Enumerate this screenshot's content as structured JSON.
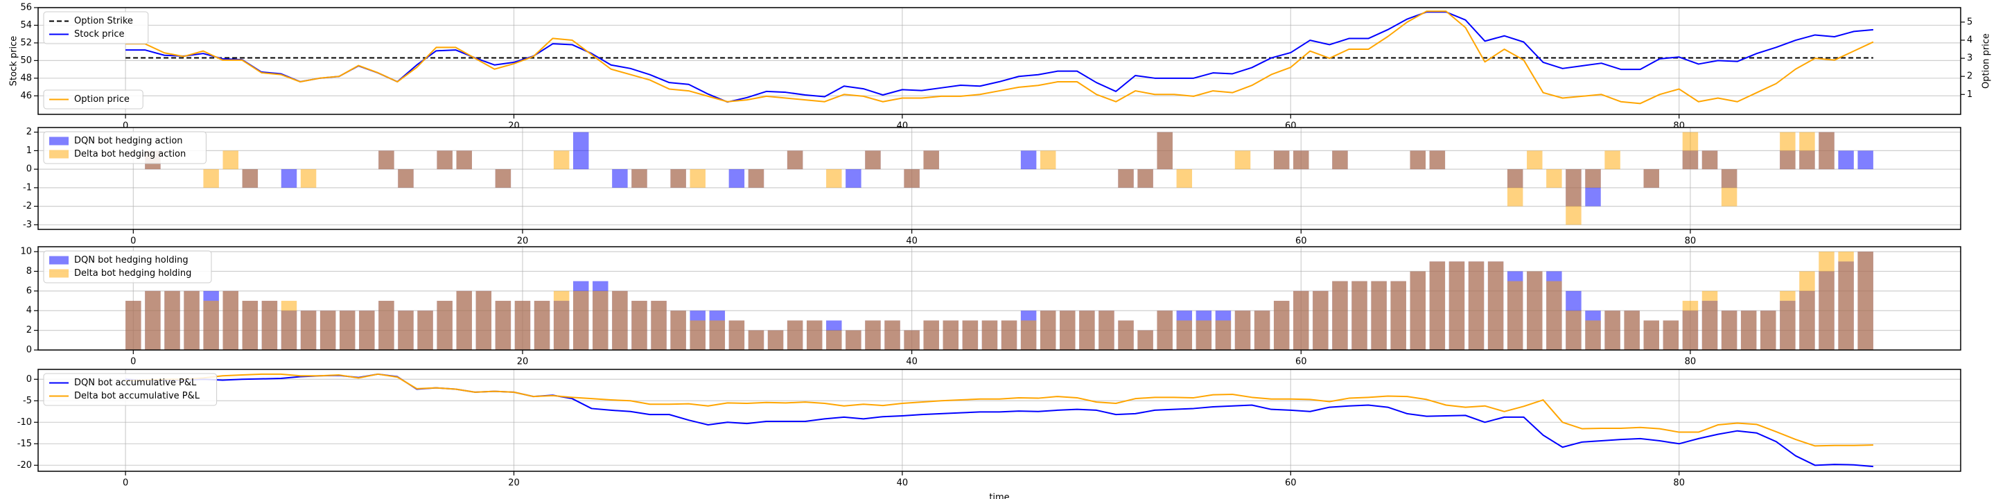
{
  "chart_data": [
    {
      "type": "line",
      "ylabel": "Stock price",
      "y2label": "Option price",
      "x": [
        0,
        1,
        2,
        3,
        4,
        5,
        6,
        7,
        8,
        9,
        10,
        11,
        12,
        13,
        14,
        15,
        16,
        17,
        18,
        19,
        20,
        21,
        22,
        23,
        24,
        25,
        26,
        27,
        28,
        29,
        30,
        31,
        32,
        33,
        34,
        35,
        36,
        37,
        38,
        39,
        40,
        41,
        42,
        43,
        44,
        45,
        46,
        47,
        48,
        49,
        50,
        51,
        52,
        53,
        54,
        55,
        56,
        57,
        58,
        59,
        60,
        61,
        62,
        63,
        64,
        65,
        66,
        67,
        68,
        69,
        70,
        71,
        72,
        73,
        74,
        75,
        76,
        77,
        78,
        79,
        80,
        81,
        82,
        83,
        84,
        85,
        86,
        87,
        88,
        89,
        90
      ],
      "xlim": [
        -4.5,
        94.5
      ],
      "xticks": [
        0,
        20,
        40,
        60,
        80
      ],
      "ylim": [
        43.9,
        56
      ],
      "yticks": [
        46,
        48,
        50,
        52,
        54,
        56
      ],
      "y2lim": [
        -0.1,
        5.8
      ],
      "y2ticks": [
        1,
        2,
        3,
        4,
        5
      ],
      "grid": true,
      "legend": "upper left",
      "legend_y2": "lower left",
      "series": [
        {
          "name": "Stock price",
          "color": "blue",
          "values": [
            51.2,
            51.2,
            50.6,
            50.5,
            50.8,
            50.2,
            50.1,
            48.7,
            48.5,
            47.6,
            48.0,
            48.2,
            49.4,
            48.6,
            47.6,
            49.5,
            51.1,
            51.2,
            50.3,
            49.5,
            49.8,
            50.5,
            51.9,
            51.8,
            50.8,
            49.5,
            49.1,
            48.4,
            47.5,
            47.3,
            46.2,
            45.3,
            45.8,
            46.5,
            46.4,
            46.1,
            45.9,
            47.1,
            46.8,
            46.1,
            46.7,
            46.6,
            46.9,
            47.2,
            47.1,
            47.6,
            48.2,
            48.4,
            48.8,
            48.8,
            47.5,
            46.5,
            48.3,
            48.0,
            48.0,
            48.0,
            48.6,
            48.5,
            49.2,
            50.3,
            50.9,
            52.3,
            51.8,
            52.5,
            52.5,
            53.5,
            54.7,
            55.5,
            55.5,
            54.6,
            52.2,
            52.8,
            52.1,
            49.8,
            49.1,
            49.4,
            49.7,
            49.0,
            49.0,
            50.2,
            50.4,
            49.6,
            50.0,
            49.9,
            50.8,
            51.5,
            52.3,
            52.9,
            52.7,
            53.3,
            53.5
          ]
        },
        {
          "name": "Option price",
          "color": "orange",
          "axis": "y2",
          "values": [
            3.8,
            3.8,
            3.3,
            3.1,
            3.4,
            2.9,
            2.9,
            2.2,
            2.1,
            1.7,
            1.9,
            2.0,
            2.6,
            2.2,
            1.7,
            2.5,
            3.6,
            3.6,
            3.0,
            2.4,
            2.7,
            3.1,
            4.1,
            4.0,
            3.2,
            2.4,
            2.1,
            1.8,
            1.3,
            1.2,
            0.9,
            0.6,
            0.7,
            0.9,
            0.8,
            0.7,
            0.6,
            1.0,
            0.9,
            0.6,
            0.8,
            0.8,
            0.9,
            0.9,
            1.0,
            1.2,
            1.4,
            1.5,
            1.7,
            1.7,
            1.0,
            0.6,
            1.2,
            1.0,
            1.0,
            0.9,
            1.2,
            1.1,
            1.5,
            2.1,
            2.5,
            3.4,
            3.0,
            3.5,
            3.5,
            4.2,
            5.0,
            5.6,
            5.6,
            4.7,
            2.8,
            3.5,
            2.9,
            1.1,
            0.8,
            0.9,
            1.0,
            0.6,
            0.5,
            1.0,
            1.3,
            0.6,
            0.8,
            0.6,
            1.1,
            1.6,
            2.4,
            3.0,
            2.9,
            3.4,
            3.9
          ]
        }
      ],
      "reference_lines": [
        {
          "name": "Option Strike",
          "value": 50.3,
          "color": "black",
          "style": "dashed"
        }
      ]
    },
    {
      "type": "bar",
      "x": [
        0,
        1,
        2,
        3,
        4,
        5,
        6,
        7,
        8,
        9,
        10,
        11,
        12,
        13,
        14,
        15,
        16,
        17,
        18,
        19,
        20,
        21,
        22,
        23,
        24,
        25,
        26,
        27,
        28,
        29,
        30,
        31,
        32,
        33,
        34,
        35,
        36,
        37,
        38,
        39,
        40,
        41,
        42,
        43,
        44,
        45,
        46,
        47,
        48,
        49,
        50,
        51,
        52,
        53,
        54,
        55,
        56,
        57,
        58,
        59,
        60,
        61,
        62,
        63,
        64,
        65,
        66,
        67,
        68,
        69,
        70,
        71,
        72,
        73,
        74,
        75,
        76,
        77,
        78,
        79,
        80,
        81,
        82,
        83,
        84,
        85,
        86,
        87,
        88,
        89
      ],
      "xlim": [
        -4.89,
        93.89
      ],
      "xticks": [
        0,
        20,
        40,
        60,
        80
      ],
      "ylim": [
        -3.25,
        2.25
      ],
      "yticks": [
        -3,
        -2,
        -1,
        0,
        1,
        2
      ],
      "grid": true,
      "legend": "upper left",
      "alpha": 0.5,
      "series": [
        {
          "name": "DQN bot hedging action",
          "color": "blue",
          "values": [
            0,
            1,
            0,
            0,
            0,
            0,
            -1,
            0,
            -1,
            0,
            0,
            0,
            0,
            1,
            -1,
            0,
            1,
            1,
            0,
            -1,
            0,
            0,
            0,
            2,
            0,
            -1,
            -1,
            0,
            -1,
            0,
            0,
            -1,
            -1,
            0,
            1,
            0,
            0,
            -1,
            1,
            0,
            -1,
            1,
            0,
            0,
            0,
            0,
            1,
            0,
            0,
            0,
            0,
            -1,
            -1,
            2,
            0,
            0,
            0,
            0,
            0,
            1,
            1,
            0,
            1,
            0,
            0,
            0,
            1,
            1,
            0,
            0,
            0,
            -1,
            0,
            0,
            -2,
            -2,
            0,
            0,
            -1,
            0,
            1,
            1,
            -1,
            0,
            0,
            1,
            1,
            2,
            1,
            1
          ]
        },
        {
          "name": "Delta bot hedging action",
          "color": "orange",
          "values": [
            0,
            1,
            0,
            0,
            -1,
            1,
            -1,
            0,
            0,
            -1,
            0,
            0,
            0,
            1,
            -1,
            0,
            1,
            1,
            0,
            -1,
            0,
            0,
            1,
            0,
            0,
            0,
            -1,
            0,
            -1,
            -1,
            0,
            0,
            -1,
            0,
            1,
            0,
            -1,
            0,
            1,
            0,
            -1,
            1,
            0,
            0,
            0,
            0,
            0,
            1,
            0,
            0,
            0,
            -1,
            -1,
            2,
            -1,
            0,
            0,
            1,
            0,
            1,
            1,
            0,
            1,
            0,
            0,
            0,
            1,
            1,
            0,
            0,
            0,
            -2,
            1,
            -1,
            -3,
            -1,
            1,
            0,
            -1,
            0,
            2,
            1,
            -2,
            0,
            0,
            2,
            2,
            2,
            0,
            0
          ]
        }
      ]
    },
    {
      "type": "bar",
      "x": [
        0,
        1,
        2,
        3,
        4,
        5,
        6,
        7,
        8,
        9,
        10,
        11,
        12,
        13,
        14,
        15,
        16,
        17,
        18,
        19,
        20,
        21,
        22,
        23,
        24,
        25,
        26,
        27,
        28,
        29,
        30,
        31,
        32,
        33,
        34,
        35,
        36,
        37,
        38,
        39,
        40,
        41,
        42,
        43,
        44,
        45,
        46,
        47,
        48,
        49,
        50,
        51,
        52,
        53,
        54,
        55,
        56,
        57,
        58,
        59,
        60,
        61,
        62,
        63,
        64,
        65,
        66,
        67,
        68,
        69,
        70,
        71,
        72,
        73,
        74,
        75,
        76,
        77,
        78,
        79,
        80,
        81,
        82,
        83,
        84,
        85,
        86,
        87,
        88,
        89
      ],
      "xlim": [
        -4.89,
        93.89
      ],
      "xticks": [
        0,
        20,
        40,
        60,
        80
      ],
      "ylim": [
        0,
        10.5
      ],
      "yticks": [
        0,
        2,
        4,
        6,
        8,
        10
      ],
      "grid": true,
      "legend": "upper left",
      "alpha": 0.5,
      "series": [
        {
          "name": "DQN bot hedging holding",
          "color": "blue",
          "values": [
            5,
            6,
            6,
            6,
            6,
            6,
            5,
            5,
            4,
            4,
            4,
            4,
            4,
            5,
            4,
            4,
            5,
            6,
            6,
            5,
            5,
            5,
            5,
            7,
            7,
            6,
            5,
            5,
            4,
            4,
            4,
            3,
            2,
            2,
            3,
            3,
            3,
            2,
            3,
            3,
            2,
            3,
            3,
            3,
            3,
            3,
            4,
            4,
            4,
            4,
            4,
            3,
            2,
            4,
            4,
            4,
            4,
            4,
            4,
            5,
            6,
            6,
            7,
            7,
            7,
            7,
            8,
            9,
            9,
            9,
            9,
            8,
            8,
            8,
            6,
            4,
            4,
            4,
            3,
            3,
            4,
            5,
            4,
            4,
            4,
            5,
            6,
            8,
            9,
            10
          ]
        },
        {
          "name": "Delta bot hedging holding",
          "color": "orange",
          "values": [
            5,
            6,
            6,
            6,
            5,
            6,
            5,
            5,
            5,
            4,
            4,
            4,
            4,
            5,
            4,
            4,
            5,
            6,
            6,
            5,
            5,
            5,
            6,
            6,
            6,
            6,
            5,
            5,
            4,
            3,
            3,
            3,
            2,
            2,
            3,
            3,
            2,
            2,
            3,
            3,
            2,
            3,
            3,
            3,
            3,
            3,
            3,
            4,
            4,
            4,
            4,
            3,
            2,
            4,
            3,
            3,
            3,
            4,
            4,
            5,
            6,
            6,
            7,
            7,
            7,
            7,
            8,
            9,
            9,
            9,
            9,
            7,
            8,
            7,
            4,
            3,
            4,
            4,
            3,
            3,
            5,
            6,
            4,
            4,
            4,
            6,
            8,
            10,
            10,
            10
          ]
        }
      ]
    },
    {
      "type": "line",
      "xlabel": "time",
      "x": [
        0,
        1,
        2,
        3,
        4,
        5,
        6,
        7,
        8,
        9,
        10,
        11,
        12,
        13,
        14,
        15,
        16,
        17,
        18,
        19,
        20,
        21,
        22,
        23,
        24,
        25,
        26,
        27,
        28,
        29,
        30,
        31,
        32,
        33,
        34,
        35,
        36,
        37,
        38,
        39,
        40,
        41,
        42,
        43,
        44,
        45,
        46,
        47,
        48,
        49,
        50,
        51,
        52,
        53,
        54,
        55,
        56,
        57,
        58,
        59,
        60,
        61,
        62,
        63,
        64,
        65,
        66,
        67,
        68,
        69,
        70,
        71,
        72,
        73,
        74,
        75,
        76,
        77,
        78,
        79,
        80,
        81,
        82,
        83,
        84,
        85,
        86,
        87,
        88,
        89,
        90
      ],
      "xlim": [
        -4.5,
        94.5
      ],
      "xticks": [
        0,
        20,
        40,
        60,
        80
      ],
      "ylim": [
        -21.4,
        2.3
      ],
      "yticks": [
        -20,
        -15,
        -10,
        -5,
        0
      ],
      "grid": true,
      "legend": "upper left",
      "series": [
        {
          "name": "DQN bot accumulative P&L",
          "color": "blue",
          "values": [
            0,
            -0.3,
            -0.2,
            -0.2,
            0,
            -0.2,
            0,
            0.1,
            0.2,
            0.6,
            0.8,
            0.9,
            0.4,
            1.2,
            0.6,
            -2.3,
            -2.0,
            -2.3,
            -3.0,
            -2.8,
            -3.0,
            -4.0,
            -3.7,
            -4.5,
            -6.8,
            -7.2,
            -7.5,
            -8.2,
            -8.2,
            -9.5,
            -10.6,
            -10.0,
            -10.3,
            -9.8,
            -9.8,
            -9.8,
            -9.2,
            -8.8,
            -9.2,
            -8.7,
            -8.5,
            -8.2,
            -8.0,
            -7.8,
            -7.6,
            -7.6,
            -7.4,
            -7.5,
            -7.2,
            -7.0,
            -7.2,
            -8.2,
            -8.0,
            -7.2,
            -7.0,
            -6.8,
            -6.4,
            -6.2,
            -6.0,
            -7.0,
            -7.2,
            -7.5,
            -6.5,
            -6.2,
            -6.0,
            -6.5,
            -8.0,
            -8.6,
            -8.5,
            -8.4,
            -10.0,
            -8.8,
            -8.8,
            -13.0,
            -15.8,
            -14.6,
            -14.3,
            -14.0,
            -13.8,
            -14.3,
            -15.0,
            -13.8,
            -12.8,
            -12.0,
            -12.5,
            -14.5,
            -17.8,
            -20.0,
            -19.8,
            -19.9,
            -20.3
          ]
        },
        {
          "name": "Delta bot accumulative P&L",
          "color": "orange",
          "values": [
            -0.3,
            -0.2,
            0,
            0,
            0.3,
            0.8,
            1.0,
            1.2,
            1.2,
            0.8,
            0.8,
            1.0,
            0.3,
            1.2,
            0.5,
            -2.2,
            -2.0,
            -2.3,
            -3.0,
            -2.8,
            -3.0,
            -4.0,
            -3.8,
            -4.2,
            -4.5,
            -4.8,
            -5.0,
            -5.8,
            -5.8,
            -5.7,
            -6.2,
            -5.5,
            -5.6,
            -5.4,
            -5.5,
            -5.3,
            -5.6,
            -6.2,
            -5.8,
            -6.1,
            -5.6,
            -5.3,
            -5.0,
            -4.8,
            -4.6,
            -4.6,
            -4.3,
            -4.4,
            -4.0,
            -4.3,
            -5.3,
            -5.6,
            -4.5,
            -4.2,
            -4.2,
            -4.3,
            -3.6,
            -3.5,
            -4.2,
            -4.6,
            -4.6,
            -4.7,
            -5.2,
            -4.4,
            -4.2,
            -3.9,
            -4.0,
            -4.7,
            -6.0,
            -6.5,
            -6.2,
            -7.5,
            -6.3,
            -4.8,
            -10.0,
            -11.5,
            -11.4,
            -11.4,
            -11.2,
            -11.5,
            -12.3,
            -12.3,
            -10.6,
            -10.2,
            -10.5,
            -12.2,
            -14.0,
            -15.5,
            -15.4,
            -15.4,
            -15.3
          ]
        }
      ]
    }
  ]
}
